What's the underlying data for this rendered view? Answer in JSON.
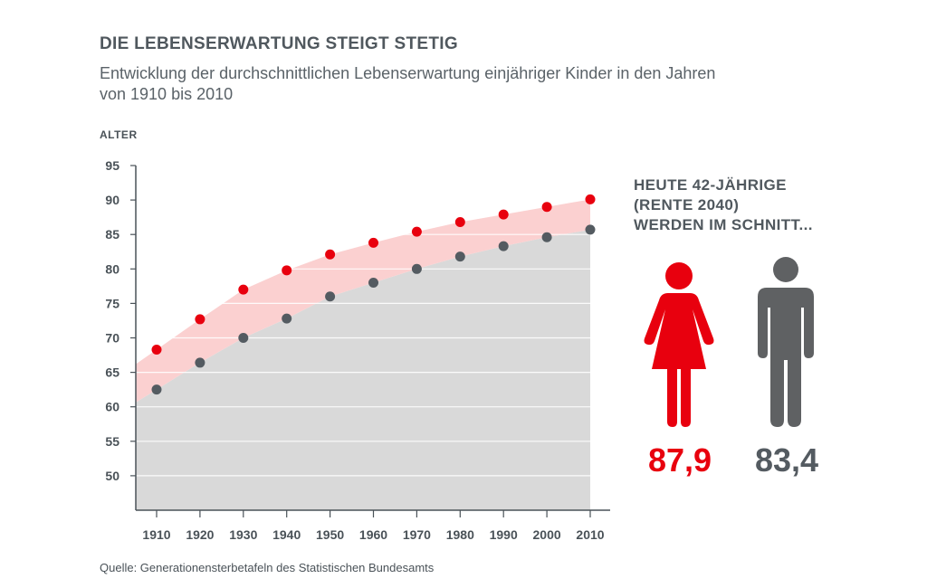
{
  "header": {
    "title": "DIE LEBENSERWARTUNG STEIGT STETIG",
    "subtitle": "Entwicklung der durchschnittlichen Lebenserwartung einjähriger Kinder in den Jahren von 1910 bis 2010"
  },
  "chart_data": {
    "type": "scatter",
    "title": "DIE LEBENSERWARTUNG STEIGT STETIG",
    "subtitle": "Entwicklung der durchschnittlichen Lebenserwartung einjähriger Kinder in den Jahren von 1910 bis 2010",
    "ylabel": "ALTER",
    "xlabel": "",
    "x": [
      1910,
      1920,
      1930,
      1940,
      1950,
      1960,
      1970,
      1980,
      1990,
      2000,
      2010
    ],
    "ylim": [
      45,
      95
    ],
    "yticks": [
      50,
      55,
      60,
      65,
      70,
      75,
      80,
      85,
      90,
      95
    ],
    "grid": true,
    "colors": {
      "female": "#e8000e",
      "male": "#545b61",
      "band": "#fbd0d0",
      "area": "#d9d9d9"
    },
    "series": [
      {
        "values": [
          68.3,
          72.7,
          77.0,
          79.8,
          82.1,
          83.8,
          85.4,
          86.8,
          87.9,
          89.0,
          90.1
        ]
      },
      {
        "values": [
          62.5,
          66.4,
          70.0,
          72.8,
          76.0,
          78.0,
          80.0,
          81.8,
          83.3,
          84.6,
          85.7
        ]
      }
    ]
  },
  "callout": {
    "lines": [
      "HEUTE 42-JÄHRIGE",
      "(RENTE 2040)",
      "WERDEN IM SCHNITT..."
    ],
    "female_icon": "woman-icon",
    "male_icon": "man-icon",
    "female_value": "87,9",
    "male_value": "83,4"
  },
  "source": "Quelle: Generationensterbetafeln des Statistischen Bundesamts"
}
